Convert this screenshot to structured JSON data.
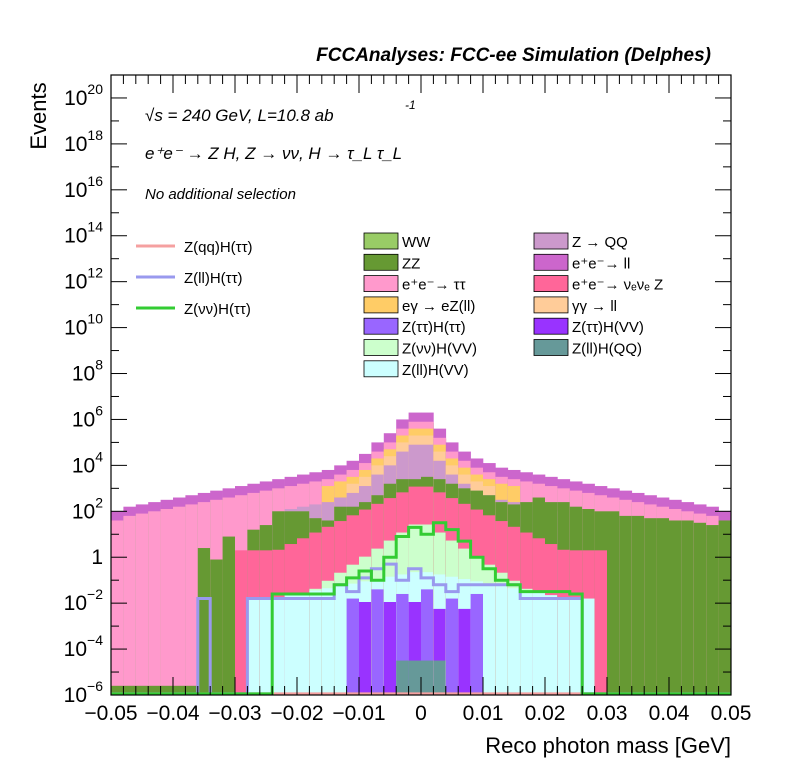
{
  "chart_data": {
    "type": "histogram-stack",
    "title": "FCCAnalyses: FCC-ee Simulation (Delphes)",
    "xlabel": "Reco photon mass [GeV]",
    "ylabel": "Events",
    "yscale": "log",
    "xlim": [
      -0.05,
      0.05
    ],
    "ylim": [
      1e-06,
      1e+21
    ],
    "nbins": 50,
    "x_tick_labels": [
      "−0.05",
      "−0.04",
      "−0.03",
      "−0.02",
      "−0.01",
      "0",
      "0.01",
      "0.02",
      "0.03",
      "0.04",
      "0.05"
    ],
    "y_ticks": [
      {
        "value": 1e-06,
        "base": "10",
        "exp": "−6"
      },
      {
        "value": 0.0001,
        "base": "10",
        "exp": "−4"
      },
      {
        "value": 0.01,
        "base": "10",
        "exp": "−2"
      },
      {
        "value": 1,
        "base": "1",
        "exp": ""
      },
      {
        "value": 100.0,
        "base": "10",
        "exp": "2"
      },
      {
        "value": 10000.0,
        "base": "10",
        "exp": "4"
      },
      {
        "value": 1000000.0,
        "base": "10",
        "exp": "6"
      },
      {
        "value": 100000000.0,
        "base": "10",
        "exp": "8"
      },
      {
        "value": 10000000000.0,
        "base": "10",
        "exp": "10"
      },
      {
        "value": 1000000000000.0,
        "base": "10",
        "exp": "12"
      },
      {
        "value": 100000000000000.0,
        "base": "10",
        "exp": "14"
      },
      {
        "value": 1e+16,
        "base": "10",
        "exp": "16"
      },
      {
        "value": 1e+18,
        "base": "10",
        "exp": "18"
      },
      {
        "value": 1e+20,
        "base": "10",
        "exp": "20"
      }
    ],
    "annotations": {
      "line1": "√s = 240 GeV, L=10.8 ab",
      "line1_sup": "-1",
      "line2": "e⁺e⁻ → Z H, Z → νν, H → τ_L τ_L",
      "line3": "No additional selection"
    },
    "stack_top_log10": [
      2.0,
      2.2,
      2.3,
      2.4,
      2.5,
      2.6,
      2.7,
      2.8,
      2.9,
      3.0,
      3.1,
      3.2,
      3.3,
      3.4,
      3.5,
      3.6,
      3.7,
      3.8,
      4.0,
      4.2,
      4.5,
      5.0,
      5.4,
      6.0,
      6.3,
      6.3,
      5.6,
      5.0,
      4.6,
      4.3,
      4.1,
      3.9,
      3.8,
      3.7,
      3.6,
      3.5,
      3.4,
      3.3,
      3.2,
      3.1,
      3.0,
      2.9,
      2.8,
      2.7,
      2.6,
      2.5,
      2.4,
      2.3,
      2.2,
      2.0
    ],
    "stack_layers_log10": {
      "ZZ": [
        -6,
        -6,
        -6,
        -6,
        -6,
        -6,
        -6,
        0,
        -0.5,
        0.5,
        -6,
        0.8,
        1.0,
        1.6,
        1.6,
        1.6,
        1.3,
        1.2,
        1.8,
        1.8,
        2.0,
        2.3,
        2.8,
        3.0,
        3.0,
        3.1,
        3.0,
        2.8,
        2.6,
        2.5,
        2.3,
        2.0,
        1.9,
        2.0,
        2.2,
        2.0,
        2.0,
        1.8,
        1.7,
        1.6,
        1.6,
        1.4,
        1.4,
        1.3,
        1.3,
        1.2,
        1.2,
        1.1,
        1.0,
        1.2
      ],
      "ee_tautau": [
        1.6,
        1.8,
        1.9,
        2.0,
        2.1,
        2.2,
        2.3,
        2.4,
        2.5,
        2.6,
        2.7,
        2.8,
        2.9,
        3.0,
        3.1,
        3.2,
        3.3,
        3.4,
        3.6,
        3.8,
        4.1,
        4.6,
        5.0,
        5.6,
        5.9,
        5.9,
        5.2,
        4.6,
        4.2,
        3.9,
        3.7,
        3.5,
        3.4,
        3.3,
        3.2,
        3.1,
        3.0,
        2.9,
        2.8,
        2.7,
        2.6,
        2.5,
        2.4,
        2.3,
        2.2,
        2.1,
        2.0,
        1.9,
        1.8,
        1.6
      ]
    },
    "line_series": [
      {
        "name": "Z(qq)H(ττ)",
        "color": "#f5a0a0",
        "values_log10": [
          -6,
          -6,
          -6,
          -6,
          -6,
          -6,
          -6,
          -6,
          -6,
          -6,
          -6,
          -6,
          -6,
          -6,
          -6,
          -6,
          -6,
          -6,
          -6,
          -6,
          -6,
          -6,
          -6,
          -6,
          -6,
          -6,
          -6,
          -6,
          -6,
          -6,
          -6,
          -6,
          -6,
          -6,
          -6,
          -6,
          -6,
          -6,
          -6,
          -6,
          -6,
          -6,
          -6,
          -6,
          -6,
          -6,
          -6,
          -6,
          -6,
          -6
        ]
      },
      {
        "name": "Z(ll)H(ττ)",
        "color": "#9999ee",
        "values_log10": [
          -6,
          -6,
          -6,
          -6,
          -6,
          -6,
          -6,
          -1.8,
          -6,
          -6,
          -6,
          -1.8,
          -1.8,
          -1.8,
          -1.8,
          -1.8,
          -1.8,
          -1.8,
          -1.2,
          -1.5,
          -0.9,
          -0.5,
          -0.3,
          -1.0,
          -0.5,
          -0.9,
          -1.2,
          -1.5,
          -1.2,
          -1.2,
          -1.2,
          -1.2,
          -1.2,
          -1.8,
          -1.8,
          -1.8,
          -1.8,
          -1.8,
          -6,
          -6,
          -6,
          -6,
          -6,
          -6,
          -6,
          -6,
          -6,
          -6,
          -6,
          -6
        ]
      },
      {
        "name": "Z(νν)H(ττ)",
        "color": "#33cc33",
        "values_log10": [
          -6,
          -6,
          -6,
          -6,
          -6,
          -6,
          -6,
          -6,
          -6,
          -6,
          -6,
          -6,
          -6,
          -1.6,
          -1.6,
          -1.6,
          -1.6,
          -1.6,
          -1.2,
          -0.9,
          -0.6,
          -1.0,
          0.0,
          0.9,
          1.3,
          1.0,
          1.5,
          1.2,
          0.7,
          0.0,
          -0.5,
          -1.0,
          -1.2,
          -1.5,
          -1.5,
          -1.5,
          -1.5,
          -1.6,
          -6,
          -6,
          -6,
          -6,
          -6,
          -6,
          -6,
          -6,
          -6,
          -6,
          -6,
          -6
        ]
      }
    ],
    "legend_left": [
      {
        "name": "Z(qq)H(ττ)",
        "color": "#f5a0a0"
      },
      {
        "name": "Z(ll)H(ττ)",
        "color": "#9999ee"
      },
      {
        "name": "Z(νν)H(ττ)",
        "color": "#33cc33"
      }
    ],
    "legend_mid": [
      {
        "name": "WW",
        "color": "#99cc66"
      },
      {
        "name": "ZZ",
        "color": "#669933"
      },
      {
        "name": "e⁺e⁻→ ττ",
        "color": "#ff99cc"
      },
      {
        "name": "eγ → eZ(ll)",
        "color": "#ffcc66"
      },
      {
        "name": "Z(ττ)H(ττ)",
        "color": "#9966ff"
      },
      {
        "name": "Z(νν)H(VV)",
        "color": "#ccffcc"
      },
      {
        "name": "Z(ll)H(VV)",
        "color": "#ccffff"
      }
    ],
    "legend_right": [
      {
        "name": "Z → QQ",
        "color": "#cc99cc"
      },
      {
        "name": "e⁺e⁻→ ll",
        "color": "#cc66cc"
      },
      {
        "name": "e⁺e⁻→ νₑνₑ Z",
        "color": "#ff6699"
      },
      {
        "name": "γγ → ll",
        "color": "#ffcc99"
      },
      {
        "name": "Z(ττ)H(VV)",
        "color": "#9933ff"
      },
      {
        "name": "Z(ll)H(QQ)",
        "color": "#669999"
      }
    ],
    "colors": {
      "ee_ll": "#cc66cc",
      "z_qq": "#cc99cc",
      "ww": "#99cc66",
      "zz": "#669933",
      "ee_tautau": "#ff99cc",
      "egamma": "#ffcc66",
      "gammagamma": "#ffcc99",
      "ee_nunuZ": "#ff6699",
      "znunu_hvv": "#ccffcc",
      "zll_hvv": "#ccffff",
      "ztautau_htautau": "#9966ff",
      "ztautau_hvv": "#9933ff",
      "zll_hqq": "#669999"
    }
  }
}
